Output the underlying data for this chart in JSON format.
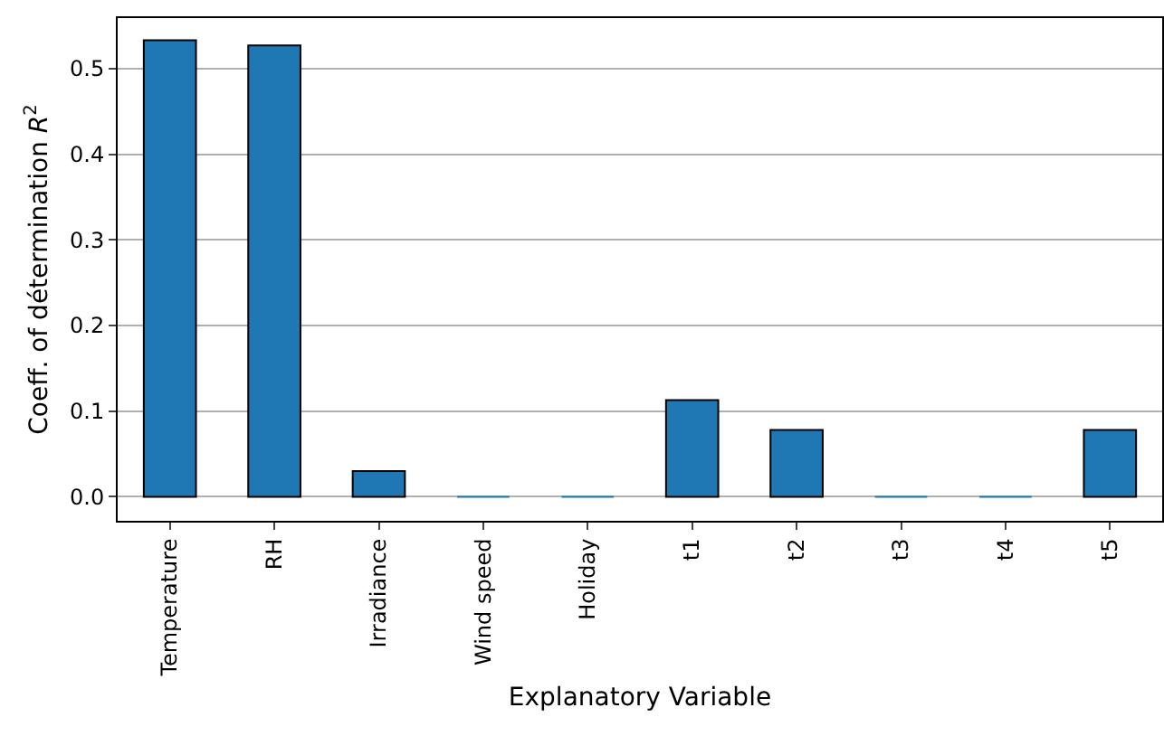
{
  "chart_data": {
    "type": "bar",
    "xlabel": "Explanatory Variable",
    "ylabel": "Coeff. of détermination R$^{2}$",
    "categories": [
      "Temperature",
      "RH",
      "Irradiance",
      "Wind speed",
      "Holiday",
      "t1",
      "t2",
      "t3",
      "t4",
      "t5"
    ],
    "values": [
      0.533,
      0.527,
      0.03,
      0,
      0,
      0.113,
      0.078,
      0,
      0,
      0.078
    ],
    "color": "#1f77b4",
    "ylim": [
      -0.028,
      0.559
    ],
    "yticks": [
      {
        "value": 0,
        "label": "0.0"
      },
      0.1,
      0.2,
      0.3,
      0.4,
      0.5
    ],
    "grid": "y"
  }
}
